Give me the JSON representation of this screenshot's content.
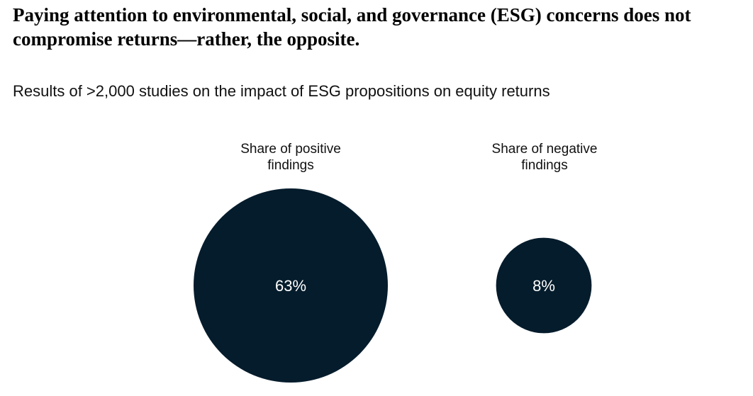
{
  "title": "Paying attention to environmental, social, and governance (ESG) concerns does not compromise returns—rather, the opposite.",
  "subtitle": "Results of >2,000 studies on the impact of ESG propositions on equity returns",
  "colors": {
    "bubble": "#051c2c",
    "text": "#ffffff"
  },
  "chart_data": {
    "type": "bubble",
    "categories": [
      "Share of positive findings",
      "Share of negative findings"
    ],
    "values": [
      63,
      8
    ],
    "data_labels": [
      "63%",
      "8%"
    ]
  }
}
